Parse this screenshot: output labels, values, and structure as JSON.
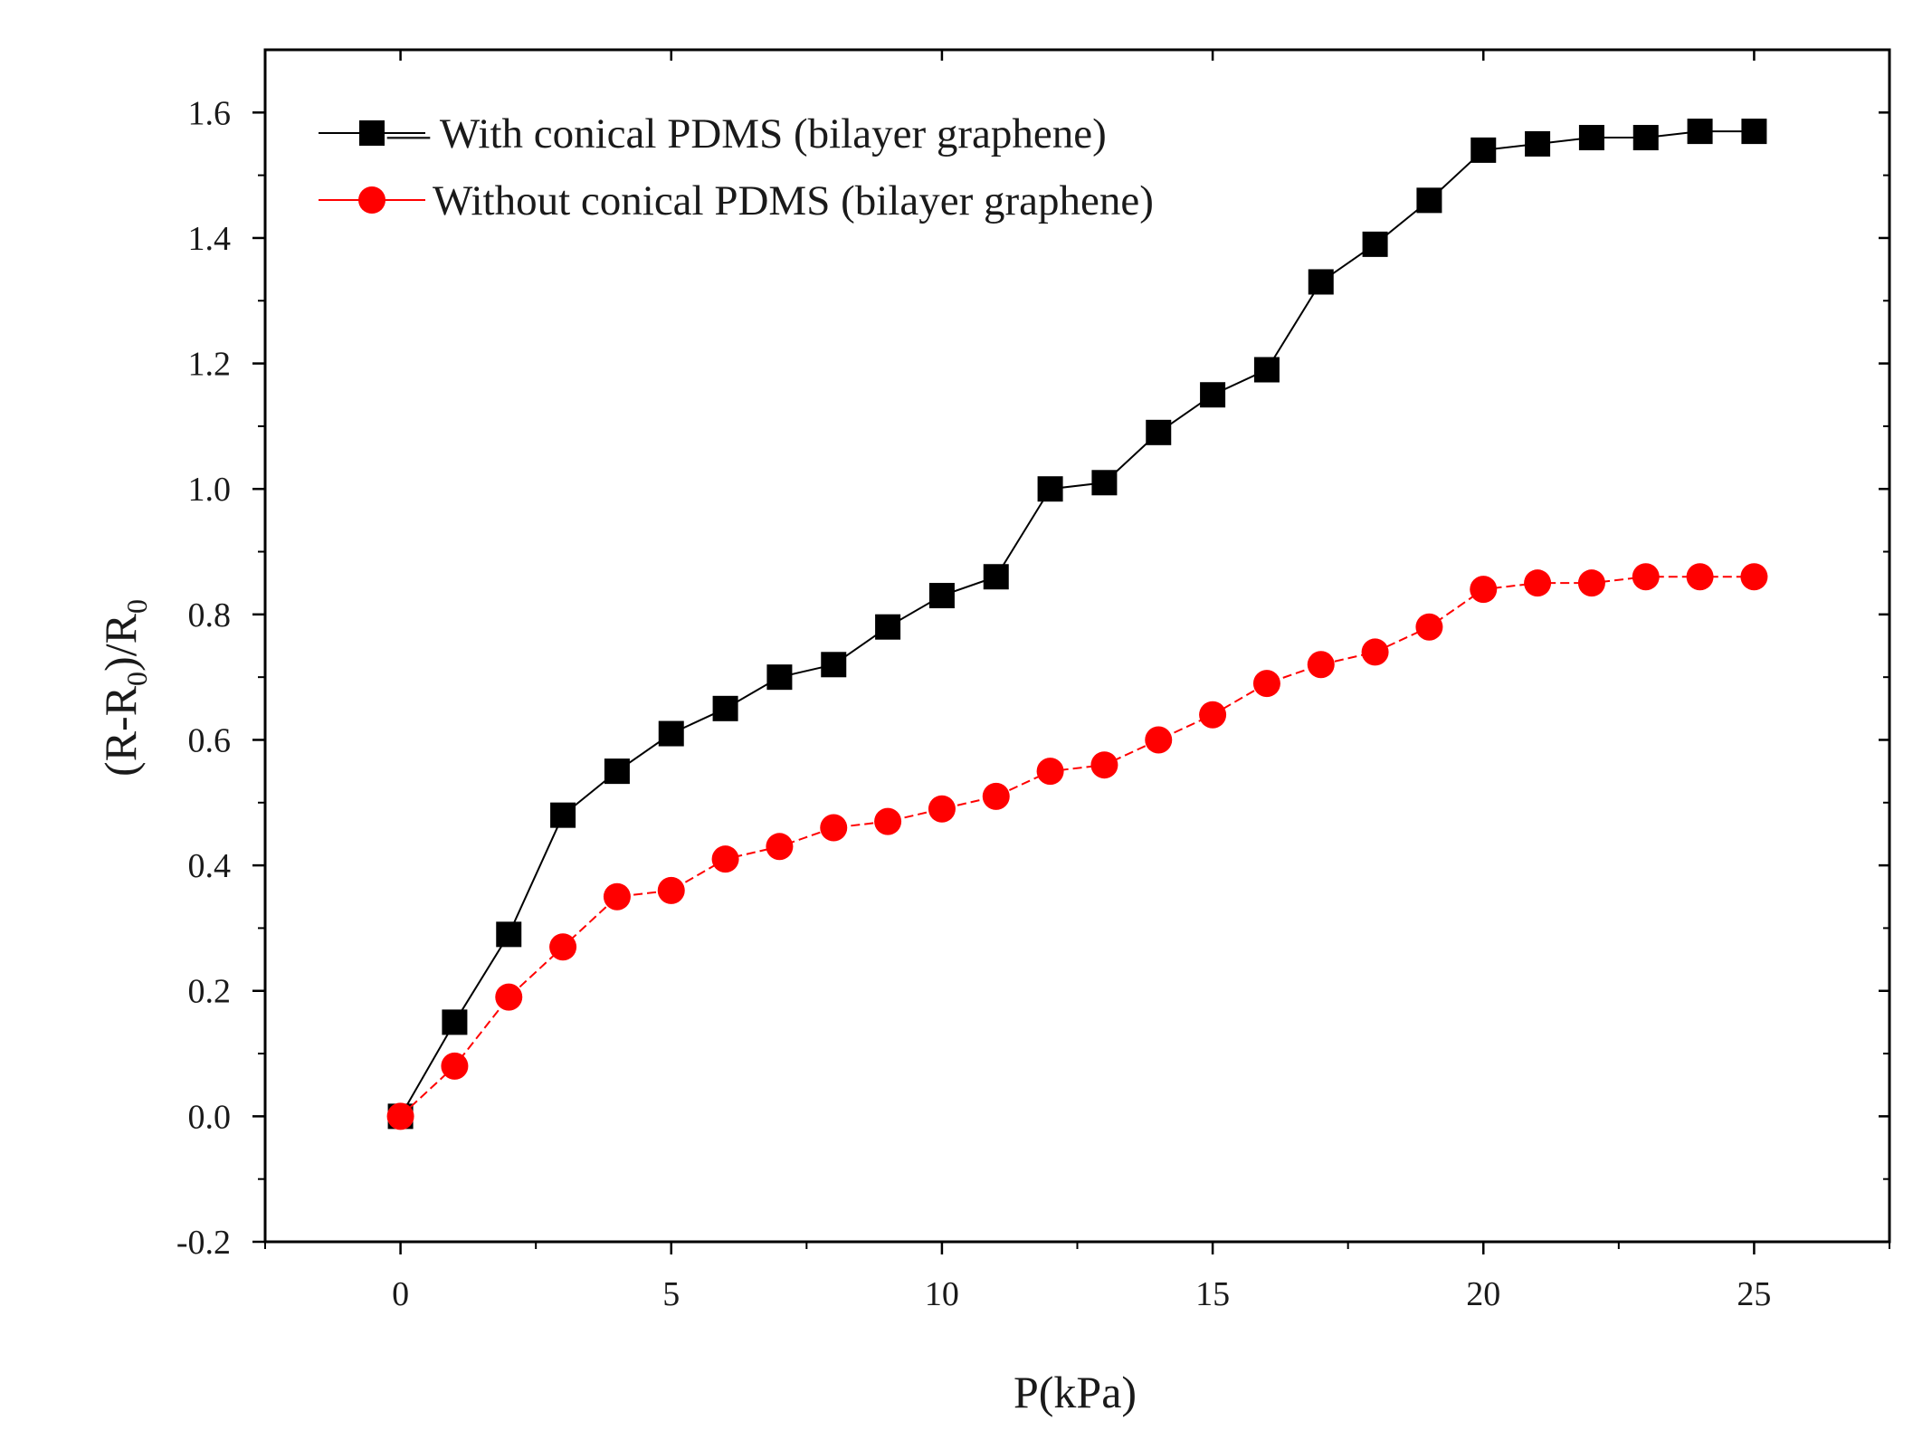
{
  "chart_data": {
    "type": "line",
    "title": "",
    "xlabel": "P(kPa)",
    "ylabel_main": "(R-R",
    "ylabel_sub": "0",
    "ylabel_mid": ")/R",
    "ylabel_sub2": "0",
    "xlim": [
      -2.5,
      27.5
    ],
    "ylim": [
      -0.2,
      1.7
    ],
    "x_ticks": [
      0,
      5,
      10,
      15,
      20,
      25
    ],
    "x_tick_labels": [
      "0",
      "5",
      "10",
      "15",
      "20",
      "25"
    ],
    "y_ticks": [
      -0.2,
      0.0,
      0.2,
      0.4,
      0.6,
      0.8,
      1.0,
      1.2,
      1.4,
      1.6
    ],
    "y_tick_labels": [
      "-0.2",
      "0.0",
      "0.2",
      "0.4",
      "0.6",
      "0.8",
      "1.0",
      "1.2",
      "1.4",
      "1.6"
    ],
    "grid": false,
    "legend_position": "top-left",
    "x": [
      0,
      1,
      2,
      3,
      4,
      5,
      6,
      7,
      8,
      9,
      10,
      11,
      12,
      13,
      14,
      15,
      16,
      17,
      18,
      19,
      20,
      21,
      22,
      23,
      24,
      25
    ],
    "series": [
      {
        "name": "With conical PDMS (bilayer graphene)",
        "legend_prefix": "—",
        "color": "#000000",
        "marker": "square",
        "values": [
          0.0,
          0.15,
          0.29,
          0.48,
          0.55,
          0.61,
          0.65,
          0.7,
          0.72,
          0.78,
          0.83,
          0.86,
          1.0,
          1.01,
          1.09,
          1.15,
          1.19,
          1.33,
          1.39,
          1.46,
          1.54,
          1.55,
          1.56,
          1.56,
          1.57,
          1.57
        ]
      },
      {
        "name": "Without conical PDMS (bilayer graphene)",
        "legend_prefix": "",
        "color": "#ff0000",
        "marker": "circle",
        "values": [
          0.0,
          0.08,
          0.19,
          0.27,
          0.35,
          0.36,
          0.41,
          0.43,
          0.46,
          0.47,
          0.49,
          0.51,
          0.55,
          0.56,
          0.6,
          0.64,
          0.69,
          0.72,
          0.74,
          0.78,
          0.84,
          0.85,
          0.85,
          0.86,
          0.86,
          0.86
        ]
      }
    ]
  }
}
